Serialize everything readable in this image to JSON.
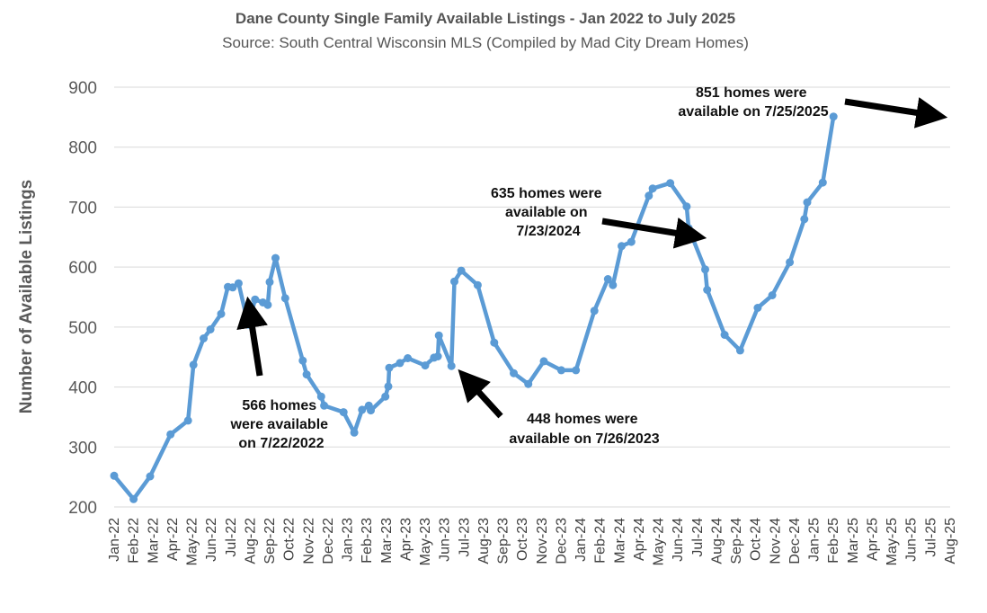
{
  "chart_data": {
    "type": "line",
    "title": "Dane County Single Family Available Listings - Jan 2022 to July 2025",
    "subtitle": "Source: South Central Wisconsin MLS (Compiled by Mad City Dream Homes)",
    "xlabel": "",
    "ylabel": "Number of Available Listings",
    "ylim": [
      200,
      900
    ],
    "yticks": [
      200,
      300,
      400,
      500,
      600,
      700,
      800,
      900
    ],
    "grid": "horizontal",
    "categories": [
      "Jan-22",
      "Feb-22",
      "Mar-22",
      "Apr-22",
      "May-22",
      "Jun-22",
      "Jul-22",
      "Aug-22",
      "Sep-22",
      "Oct-22",
      "Nov-22",
      "Dec-22",
      "Jan-23",
      "Feb-23",
      "Mar-23",
      "Apr-23",
      "May-23",
      "Jun-23",
      "Jul-23",
      "Aug-23",
      "Sep-23",
      "Oct-23",
      "Nov-23",
      "Dec-23",
      "Jan-24",
      "Feb-24",
      "Mar-24",
      "Apr-24",
      "May-24",
      "Jun-24",
      "Jul-24",
      "Aug-24",
      "Sep-24",
      "Oct-24",
      "Nov-24",
      "Dec-24",
      "Jan-25",
      "Feb-25",
      "Mar-25",
      "Apr-25",
      "May-25",
      "Jun-25",
      "Jul-25",
      "Aug-25"
    ],
    "series": [
      {
        "color": "#5b9bd5",
        "points": [
          [
            0.0,
            252
          ],
          [
            1.0,
            213
          ],
          [
            1.85,
            251
          ],
          [
            2.9,
            321
          ],
          [
            3.8,
            344
          ],
          [
            4.08,
            437
          ],
          [
            4.6,
            481
          ],
          [
            4.95,
            496
          ],
          [
            5.5,
            522
          ],
          [
            5.85,
            567
          ],
          [
            6.1,
            566
          ],
          [
            6.4,
            573
          ],
          [
            6.9,
            504
          ],
          [
            7.25,
            546
          ],
          [
            7.65,
            541
          ],
          [
            7.9,
            537
          ],
          [
            8.0,
            575
          ],
          [
            8.3,
            615
          ],
          [
            8.8,
            548
          ],
          [
            9.7,
            444
          ],
          [
            9.9,
            421
          ],
          [
            10.65,
            384
          ],
          [
            10.8,
            369
          ],
          [
            11.8,
            358
          ],
          [
            12.35,
            324
          ],
          [
            12.75,
            362
          ],
          [
            13.1,
            369
          ],
          [
            13.2,
            361
          ],
          [
            13.95,
            384
          ],
          [
            14.1,
            401
          ],
          [
            14.15,
            432
          ],
          [
            14.7,
            440
          ],
          [
            15.1,
            448
          ],
          [
            16.0,
            436
          ],
          [
            16.45,
            449
          ],
          [
            16.65,
            451
          ],
          [
            16.7,
            486
          ],
          [
            17.35,
            435
          ],
          [
            17.5,
            576
          ],
          [
            17.85,
            594
          ],
          [
            18.7,
            570
          ],
          [
            19.55,
            474
          ],
          [
            20.55,
            423
          ],
          [
            21.3,
            405
          ],
          [
            22.1,
            443
          ],
          [
            23.0,
            428
          ],
          [
            23.75,
            428
          ],
          [
            24.7,
            527
          ],
          [
            25.4,
            580
          ],
          [
            25.65,
            570
          ],
          [
            26.1,
            635
          ],
          [
            26.6,
            642
          ],
          [
            27.5,
            719
          ],
          [
            27.7,
            731
          ],
          [
            28.6,
            740
          ],
          [
            29.45,
            701
          ],
          [
            29.55,
            665
          ],
          [
            30.4,
            596
          ],
          [
            30.5,
            562
          ],
          [
            31.4,
            487
          ],
          [
            32.2,
            461
          ],
          [
            33.1,
            532
          ],
          [
            33.85,
            553
          ],
          [
            34.75,
            608
          ],
          [
            35.5,
            680
          ],
          [
            35.65,
            708
          ],
          [
            36.45,
            741
          ],
          [
            37.0,
            851
          ]
        ]
      }
    ],
    "annotations": [
      {
        "lines": [
          "566 homes",
          "were available",
          "on 7/22/2022"
        ]
      },
      {
        "lines": [
          "448 homes were",
          "available on 7/26/2023"
        ]
      },
      {
        "lines": [
          "635 homes were",
          "available on",
          "7/23/2024"
        ]
      },
      {
        "lines": [
          "851 homes were",
          "available on 7/25/2025"
        ]
      }
    ]
  }
}
